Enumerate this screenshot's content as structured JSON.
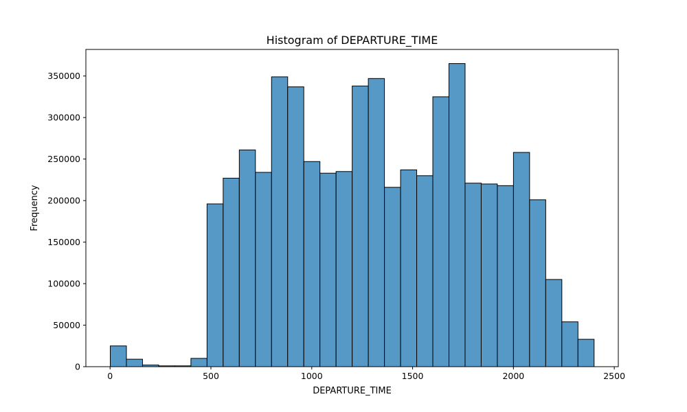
{
  "chart_data": {
    "type": "bar",
    "title": "Histogram of DEPARTURE_TIME",
    "xlabel": "DEPARTURE_TIME",
    "ylabel": "Frequency",
    "xlim": [
      -120,
      2520
    ],
    "ylim": [
      0,
      382000
    ],
    "xticks": [
      0,
      500,
      1000,
      1500,
      2000,
      2500
    ],
    "xtick_labels": [
      "0",
      "500",
      "1000",
      "1500",
      "2000",
      "2500"
    ],
    "yticks": [
      0,
      50000,
      100000,
      150000,
      200000,
      250000,
      300000,
      350000
    ],
    "ytick_labels": [
      "0",
      "50000",
      "100000",
      "150000",
      "200000",
      "250000",
      "300000",
      "350000"
    ],
    "grid": false,
    "bar_color": "#5698c6",
    "edge_color": "#000000",
    "bins": [
      {
        "x0": 1,
        "x1": 80.97,
        "count": 25000
      },
      {
        "x0": 80.97,
        "x1": 160.93,
        "count": 9000
      },
      {
        "x0": 160.93,
        "x1": 240.9,
        "count": 2000
      },
      {
        "x0": 240.9,
        "x1": 320.87,
        "count": 1000
      },
      {
        "x0": 320.87,
        "x1": 400.83,
        "count": 1000
      },
      {
        "x0": 400.83,
        "x1": 480.8,
        "count": 10000
      },
      {
        "x0": 480.8,
        "x1": 560.77,
        "count": 196000
      },
      {
        "x0": 560.77,
        "x1": 640.73,
        "count": 227000
      },
      {
        "x0": 640.73,
        "x1": 720.7,
        "count": 261000
      },
      {
        "x0": 720.7,
        "x1": 800.67,
        "count": 234000
      },
      {
        "x0": 800.67,
        "x1": 880.63,
        "count": 349000
      },
      {
        "x0": 880.63,
        "x1": 960.6,
        "count": 337000
      },
      {
        "x0": 960.6,
        "x1": 1040.57,
        "count": 247000
      },
      {
        "x0": 1040.57,
        "x1": 1120.53,
        "count": 233000
      },
      {
        "x0": 1120.53,
        "x1": 1200.5,
        "count": 235000
      },
      {
        "x0": 1200.5,
        "x1": 1280.47,
        "count": 338000
      },
      {
        "x0": 1280.47,
        "x1": 1360.43,
        "count": 347000
      },
      {
        "x0": 1360.43,
        "x1": 1440.4,
        "count": 216000
      },
      {
        "x0": 1440.4,
        "x1": 1520.37,
        "count": 237000
      },
      {
        "x0": 1520.37,
        "x1": 1600.33,
        "count": 230000
      },
      {
        "x0": 1600.33,
        "x1": 1680.3,
        "count": 325000
      },
      {
        "x0": 1680.3,
        "x1": 1760.27,
        "count": 365000
      },
      {
        "x0": 1760.27,
        "x1": 1840.23,
        "count": 221000
      },
      {
        "x0": 1840.23,
        "x1": 1920.2,
        "count": 220000
      },
      {
        "x0": 1920.2,
        "x1": 2000.17,
        "count": 218000
      },
      {
        "x0": 2000.17,
        "x1": 2080.13,
        "count": 258000
      },
      {
        "x0": 2080.13,
        "x1": 2160.1,
        "count": 201000
      },
      {
        "x0": 2160.1,
        "x1": 2240.07,
        "count": 105000
      },
      {
        "x0": 2240.07,
        "x1": 2320.03,
        "count": 54000
      },
      {
        "x0": 2320.03,
        "x1": 2400,
        "count": 33000
      }
    ]
  }
}
